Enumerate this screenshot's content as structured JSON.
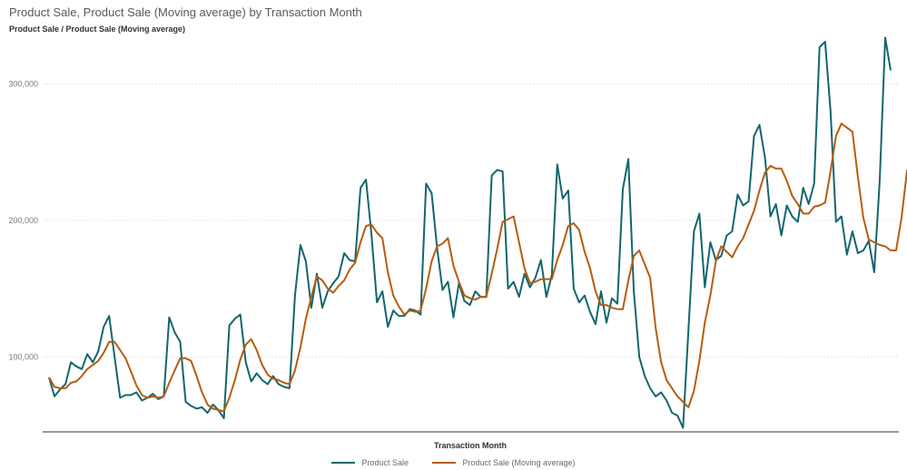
{
  "chart_data": {
    "type": "line",
    "title": "Product Sale, Product Sale (Moving average) by Transaction Month",
    "ylabel": "Product Sale / Product Sale (Moving average)",
    "xlabel": "Transaction Month",
    "ylim": [
      45000,
      335000
    ],
    "yticks": [
      {
        "value": 100000,
        "label": "100,000"
      },
      {
        "value": 200000,
        "label": "200,000"
      },
      {
        "value": 300000,
        "label": "300,000"
      }
    ],
    "grid": true,
    "legend_position": "bottom",
    "series": [
      {
        "name": "Product Sale",
        "color": "#13666e",
        "values": [
          85000,
          71000,
          76000,
          80000,
          96000,
          93000,
          91000,
          102000,
          96000,
          104000,
          122000,
          130000,
          100000,
          70000,
          72000,
          72000,
          74000,
          68000,
          70000,
          73000,
          69000,
          71000,
          129000,
          118000,
          111000,
          67000,
          64000,
          62000,
          63000,
          59000,
          65000,
          61000,
          55000,
          123000,
          128000,
          131000,
          96000,
          82000,
          88000,
          83000,
          80000,
          86000,
          80000,
          78000,
          77000,
          145000,
          182000,
          170000,
          136000,
          161000,
          136000,
          148000,
          154000,
          159000,
          176000,
          171000,
          170000,
          224000,
          230000,
          190000,
          140000,
          148000,
          122000,
          134000,
          130000,
          130000,
          135000,
          134000,
          131000,
          227000,
          220000,
          180000,
          149000,
          155000,
          129000,
          154000,
          141000,
          138000,
          148000,
          144000,
          144000,
          233000,
          237000,
          236000,
          150000,
          155000,
          144000,
          161000,
          151000,
          158000,
          171000,
          144000,
          160000,
          241000,
          216000,
          222000,
          150000,
          140000,
          145000,
          133000,
          124000,
          148000,
          125000,
          143000,
          139000,
          223000,
          245000,
          148000,
          100000,
          86000,
          77000,
          71000,
          74000,
          68000,
          59000,
          57000,
          48000,
          120000,
          192000,
          205000,
          151000,
          184000,
          171000,
          174000,
          189000,
          192000,
          219000,
          211000,
          214000,
          262000,
          270000,
          246000,
          203000,
          212000,
          189000,
          211000,
          203000,
          199000,
          224000,
          212000,
          227000,
          327000,
          331000,
          280000,
          199000,
          203000,
          175000,
          192000,
          176000,
          178000,
          185000,
          162000,
          230000,
          334000,
          310000
        ]
      },
      {
        "name": "Product Sale (Moving average)",
        "color": "#b65d0e",
        "values": [
          85000,
          78000,
          77000,
          77000,
          81000,
          82000,
          86000,
          91000,
          94000,
          97000,
          103000,
          111000,
          111000,
          105000,
          99000,
          89000,
          79000,
          72000,
          70000,
          71000,
          70000,
          71000,
          81000,
          90000,
          99000,
          99000,
          97000,
          86000,
          74000,
          65000,
          62000,
          61000,
          60000,
          70000,
          83000,
          98000,
          109000,
          113000,
          105000,
          94000,
          87000,
          84000,
          83000,
          81000,
          80000,
          90000,
          107000,
          128000,
          144000,
          159000,
          156000,
          150000,
          147000,
          152000,
          156000,
          164000,
          169000,
          184000,
          196000,
          197000,
          191000,
          187000,
          162000,
          145000,
          137000,
          131000,
          134000,
          133000,
          134000,
          150000,
          170000,
          181000,
          183000,
          187000,
          167000,
          155000,
          145000,
          143000,
          142000,
          144000,
          144000,
          161000,
          179000,
          199000,
          201000,
          203000,
          184000,
          165000,
          154000,
          155000,
          157000,
          157000,
          157000,
          171000,
          182000,
          196000,
          198000,
          193000,
          177000,
          165000,
          148000,
          138000,
          138000,
          136000,
          135000,
          135000,
          156000,
          174000,
          178000,
          168000,
          158000,
          121000,
          96000,
          83000,
          77000,
          71000,
          67000,
          63000,
          75000,
          97000,
          125000,
          145000,
          170000,
          181000,
          177000,
          173000,
          181000,
          187000,
          197000,
          207000,
          222000,
          235000,
          240000,
          238000,
          238000,
          229000,
          218000,
          212000,
          205000,
          205000,
          210000,
          211000,
          213000,
          236000,
          262000,
          271000,
          268000,
          265000,
          232000,
          202000,
          186000,
          184000,
          182000,
          181000,
          178000,
          178000,
          202000,
          237000
        ]
      }
    ]
  }
}
